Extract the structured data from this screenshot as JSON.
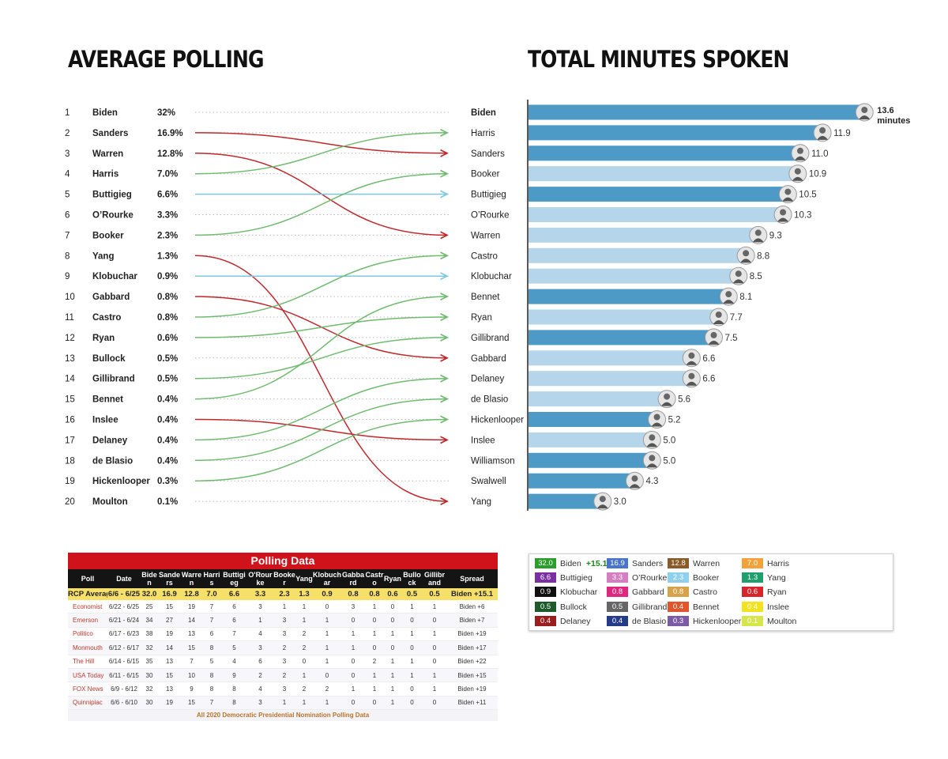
{
  "left_title": "AVERAGE POLLING",
  "right_title": "TOTAL MINUTES SPOKEN",
  "chart_data": [
    {
      "type": "table",
      "title": "AVERAGE POLLING",
      "rows": [
        {
          "rank": "1",
          "name": "Biden",
          "pct": "32%"
        },
        {
          "rank": "2",
          "name": "Sanders",
          "pct": "16.9%"
        },
        {
          "rank": "3",
          "name": "Warren",
          "pct": "12.8%"
        },
        {
          "rank": "4",
          "name": "Harris",
          "pct": "7.0%"
        },
        {
          "rank": "5",
          "name": "Buttigieg",
          "pct": "6.6%"
        },
        {
          "rank": "6",
          "name": "O’Rourke",
          "pct": "3.3%"
        },
        {
          "rank": "7",
          "name": "Booker",
          "pct": "2.3%"
        },
        {
          "rank": "8",
          "name": "Yang",
          "pct": "1.3%"
        },
        {
          "rank": "9",
          "name": "Klobuchar",
          "pct": "0.9%"
        },
        {
          "rank": "10",
          "name": "Gabbard",
          "pct": "0.8%"
        },
        {
          "rank": "11",
          "name": "Castro",
          "pct": "0.8%"
        },
        {
          "rank": "12",
          "name": "Ryan",
          "pct": "0.6%"
        },
        {
          "rank": "13",
          "name": "Bullock",
          "pct": "0.5%"
        },
        {
          "rank": "14",
          "name": "Gillibrand",
          "pct": "0.5%"
        },
        {
          "rank": "15",
          "name": "Bennet",
          "pct": "0.4%"
        },
        {
          "rank": "16",
          "name": "Inslee",
          "pct": "0.4%"
        },
        {
          "rank": "17",
          "name": "Delaney",
          "pct": "0.4%"
        },
        {
          "rank": "18",
          "name": "de Blasio",
          "pct": "0.4%"
        },
        {
          "rank": "19",
          "name": "Hickenlooper",
          "pct": "0.3%"
        },
        {
          "rank": "20",
          "name": "Moulton",
          "pct": "0.1%"
        }
      ],
      "connections": [
        {
          "from": 2,
          "to": 3,
          "color": "red"
        },
        {
          "from": 3,
          "to": 7,
          "color": "red"
        },
        {
          "from": 4,
          "to": 2,
          "color": "green"
        },
        {
          "from": 5,
          "to": 5,
          "color": "blue"
        },
        {
          "from": 7,
          "to": 4,
          "color": "green"
        },
        {
          "from": 8,
          "to": 20,
          "color": "red"
        },
        {
          "from": 9,
          "to": 9,
          "color": "blue"
        },
        {
          "from": 10,
          "to": 13,
          "color": "red"
        },
        {
          "from": 11,
          "to": 8,
          "color": "green"
        },
        {
          "from": 12,
          "to": 11,
          "color": "green"
        },
        {
          "from": 14,
          "to": 12,
          "color": "green"
        },
        {
          "from": 15,
          "to": 10,
          "color": "green"
        },
        {
          "from": 16,
          "to": 17,
          "color": "red"
        },
        {
          "from": 17,
          "to": 14,
          "color": "green"
        },
        {
          "from": 18,
          "to": 15,
          "color": "green"
        },
        {
          "from": 19,
          "to": 16,
          "color": "green"
        }
      ]
    },
    {
      "type": "bar",
      "title": "TOTAL MINUTES SPOKEN",
      "categories": [
        "Biden",
        "Harris",
        "Sanders",
        "Booker",
        "Buttigieg",
        "O’Rourke",
        "Warren",
        "Castro",
        "Klobuchar",
        "Bennet",
        "Ryan",
        "Gillibrand",
        "Gabbard",
        "Delaney",
        "de Blasio",
        "Hickenlooper",
        "Inslee",
        "Williamson",
        "Swalwell",
        "Yang"
      ],
      "values": [
        13.6,
        11.9,
        11.0,
        10.9,
        10.5,
        10.3,
        9.3,
        8.8,
        8.5,
        8.1,
        7.7,
        7.5,
        6.6,
        6.6,
        5.6,
        5.2,
        5.0,
        5.0,
        4.3,
        3.0
      ],
      "value_labels": [
        "13.6",
        "11.9",
        "11.0",
        "10.9",
        "10.5",
        "10.3",
        "9.3",
        "8.8",
        "8.5",
        "8.1",
        "7.7",
        "7.5",
        "6.6",
        "6.6",
        "5.6",
        "5.2",
        "5.0",
        "5.0",
        "4.3",
        "3.0"
      ],
      "first_value_unit": "minutes",
      "shade": [
        "dark",
        "dark",
        "dark",
        "light",
        "dark",
        "light",
        "light",
        "light",
        "light",
        "dark",
        "light",
        "dark",
        "light",
        "light",
        "light",
        "dark",
        "light",
        "dark",
        "dark",
        "dark"
      ],
      "colors": {
        "dark": "#4d9ac6",
        "light": "#b5d6ea"
      },
      "xlim": [
        0,
        14.2
      ]
    },
    {
      "type": "table",
      "title": "Polling Data",
      "columns": [
        "Poll",
        "Date",
        "Biden",
        "Sanders",
        "Warren",
        "Harris",
        "Buttigieg",
        "O'Rourke",
        "Booker",
        "Yang",
        "Klobuchar",
        "Gabbard",
        "Castro",
        "Ryan",
        "Bullock",
        "Gillibrand",
        "Spread"
      ],
      "average": [
        "RCP Average",
        "6/6 - 6/25",
        "32.0",
        "16.9",
        "12.8",
        "7.0",
        "6.6",
        "3.3",
        "2.3",
        "1.3",
        "0.9",
        "0.8",
        "0.8",
        "0.6",
        "0.5",
        "0.5",
        "Biden +15.1"
      ],
      "rows": [
        [
          "Economist",
          "6/22 - 6/25",
          "25",
          "15",
          "19",
          "7",
          "6",
          "3",
          "1",
          "1",
          "0",
          "3",
          "1",
          "0",
          "1",
          "1",
          "Biden +6"
        ],
        [
          "Emerson",
          "6/21 - 6/24",
          "34",
          "27",
          "14",
          "7",
          "6",
          "1",
          "3",
          "1",
          "1",
          "0",
          "0",
          "0",
          "0",
          "0",
          "Biden +7"
        ],
        [
          "Politico",
          "6/17 - 6/23",
          "38",
          "19",
          "13",
          "6",
          "7",
          "4",
          "3",
          "2",
          "1",
          "1",
          "1",
          "1",
          "1",
          "1",
          "Biden +19"
        ],
        [
          "Monmouth",
          "6/12 - 6/17",
          "32",
          "14",
          "15",
          "8",
          "5",
          "3",
          "2",
          "2",
          "1",
          "1",
          "0",
          "0",
          "0",
          "0",
          "Biden +17"
        ],
        [
          "The Hill",
          "6/14 - 6/15",
          "35",
          "13",
          "7",
          "5",
          "4",
          "6",
          "3",
          "0",
          "1",
          "0",
          "2",
          "1",
          "1",
          "0",
          "Biden +22"
        ],
        [
          "USA Today",
          "6/11 - 6/15",
          "30",
          "15",
          "10",
          "8",
          "9",
          "2",
          "2",
          "1",
          "0",
          "0",
          "1",
          "1",
          "1",
          "1",
          "Biden +15"
        ],
        [
          "FOX News",
          "6/9 - 6/12",
          "32",
          "13",
          "9",
          "8",
          "8",
          "4",
          "3",
          "2",
          "2",
          "1",
          "1",
          "1",
          "0",
          "1",
          "Biden +19"
        ],
        [
          "Quinnipiac",
          "6/6 - 6/10",
          "30",
          "19",
          "15",
          "7",
          "8",
          "3",
          "1",
          "1",
          "1",
          "0",
          "0",
          "1",
          "0",
          "0",
          "Biden +11"
        ]
      ],
      "footer": "All 2020 Democratic Presidential Nomination Polling Data"
    }
  ],
  "legend": [
    {
      "value": "32.0",
      "name": "Biden",
      "extra": "+15.1",
      "color": "#2a9d2a",
      "text": "#ffffff"
    },
    {
      "value": "16.9",
      "name": "Sanders",
      "color": "#4a74c9",
      "text": "#ffffff"
    },
    {
      "value": "12.8",
      "name": "Warren",
      "color": "#8a5a2b",
      "text": "#ffffff"
    },
    {
      "value": "7.0",
      "name": "Harris",
      "color": "#f3a23a",
      "text": "#ffffff"
    },
    {
      "value": "6.6",
      "name": "Buttigieg",
      "color": "#7b2fa2",
      "text": "#ffffff"
    },
    {
      "value": "3.3",
      "name": "O’Rourke",
      "color": "#d67ec2",
      "text": "#ffffff"
    },
    {
      "value": "2.3",
      "name": "Booker",
      "color": "#8fd0ef",
      "text": "#ffffff"
    },
    {
      "value": "1.3",
      "name": "Yang",
      "color": "#1e9f6b",
      "text": "#ffffff"
    },
    {
      "value": "0.9",
      "name": "Klobuchar",
      "color": "#111111",
      "text": "#ffffff"
    },
    {
      "value": "0.8",
      "name": "Gabbard",
      "color": "#e0277f",
      "text": "#ffffff"
    },
    {
      "value": "0.8",
      "name": "Castro",
      "color": "#d8a24a",
      "text": "#ffffff"
    },
    {
      "value": "0.6",
      "name": "Ryan",
      "color": "#d8252b",
      "text": "#ffffff"
    },
    {
      "value": "0.5",
      "name": "Bullock",
      "color": "#1d5b2a",
      "text": "#ffffff"
    },
    {
      "value": "0.5",
      "name": "Gillibrand",
      "color": "#666666",
      "text": "#ffffff"
    },
    {
      "value": "0.4",
      "name": "Bennet",
      "color": "#e0552b",
      "text": "#ffffff"
    },
    {
      "value": "0.4",
      "name": "Inslee",
      "color": "#f2e21f",
      "text": "#ffffff"
    },
    {
      "value": "0.4",
      "name": "Delaney",
      "color": "#9b1d1d",
      "text": "#ffffff"
    },
    {
      "value": "0.4",
      "name": "de Blasio",
      "color": "#243a8a",
      "text": "#ffffff"
    },
    {
      "value": "0.3",
      "name": "Hickenlooper",
      "color": "#7b5aa6",
      "text": "#ffffff"
    },
    {
      "value": "0.1",
      "name": "Moulton",
      "color": "#d6e64a",
      "text": "#ffffff"
    }
  ],
  "colors": {
    "red": "#c0282c",
    "green": "#6fbb6f",
    "blue": "#7cc8e0",
    "dots": "#bbbbbb"
  }
}
